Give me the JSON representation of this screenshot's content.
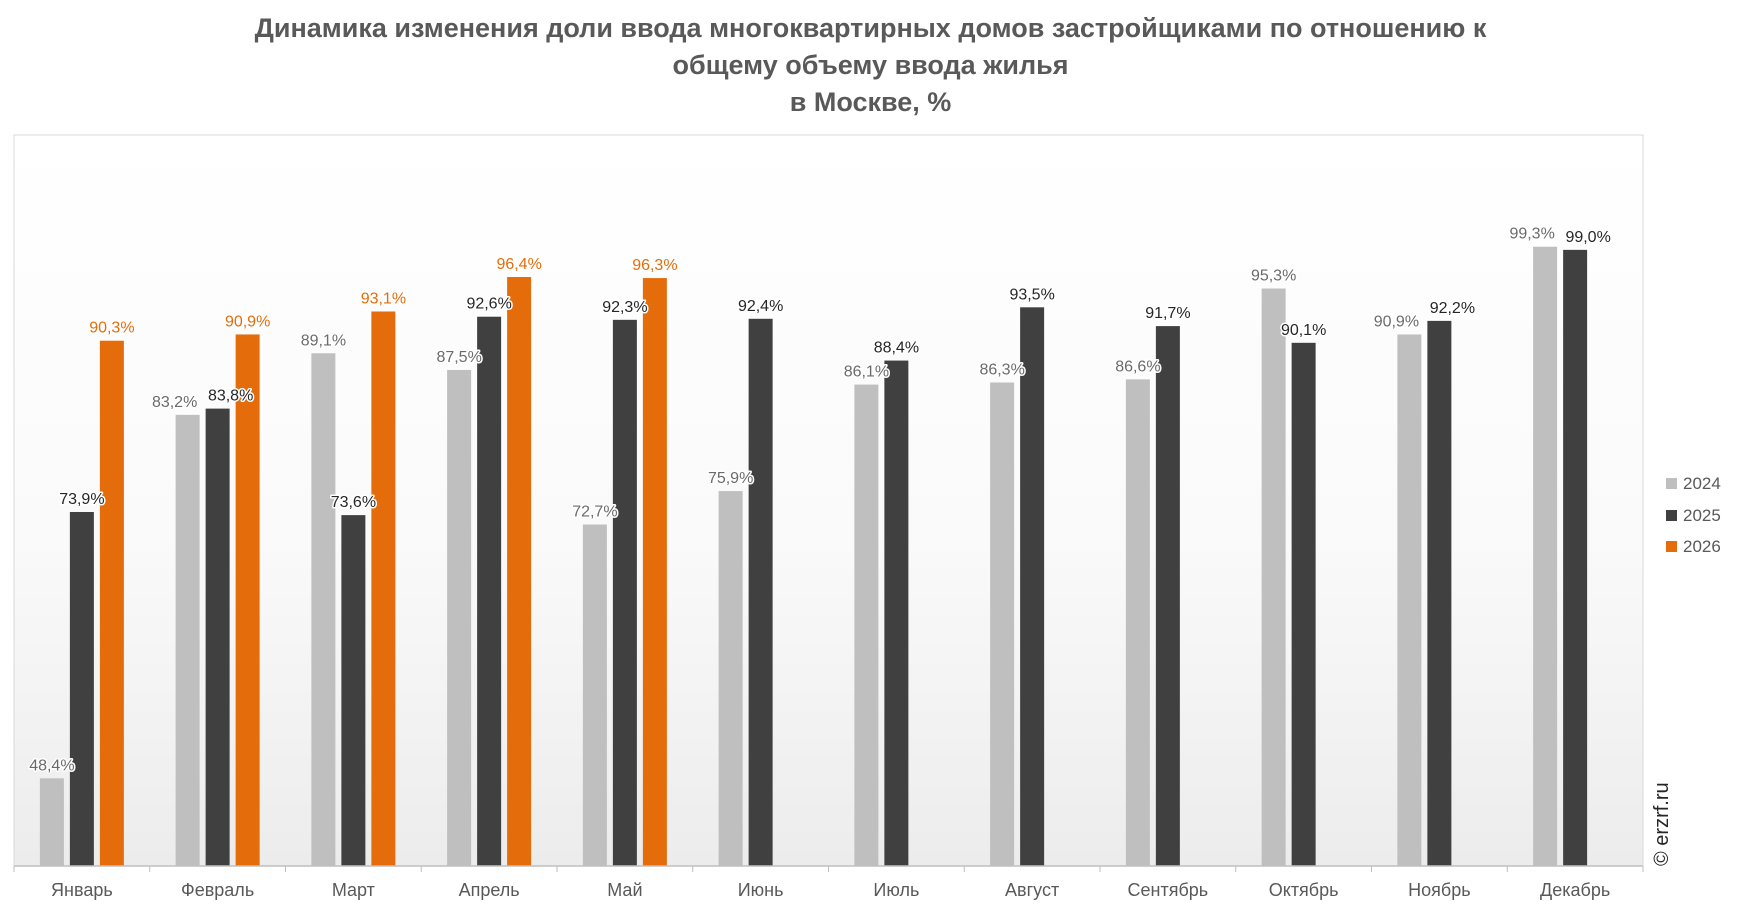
{
  "watermark": "© erzrf.ru",
  "chart_data": {
    "type": "bar",
    "title": [
      "Динамика изменения доли ввода многоквартирных домов застройщиками по отношению к",
      "общему объему ввода жилья",
      "в Москве, %"
    ],
    "xlabel": "",
    "ylabel": "",
    "ylim": [
      40,
      110
    ],
    "grid": false,
    "legend": "right",
    "categories": [
      "Январь",
      "Февраль",
      "Март",
      "Апрель",
      "Май",
      "Июнь",
      "Июль",
      "Август",
      "Сентябрь",
      "Октябрь",
      "Ноябрь",
      "Декабрь"
    ],
    "series": [
      {
        "name": "2024",
        "color": "#BFBFBF",
        "label_color": "#6B6B6B",
        "values": [
          48.4,
          83.2,
          89.1,
          87.5,
          72.7,
          75.9,
          86.1,
          86.3,
          86.6,
          95.3,
          90.9,
          99.3
        ]
      },
      {
        "name": "2025",
        "color": "#404040",
        "label_color": "#262626",
        "values": [
          73.9,
          83.8,
          73.6,
          92.6,
          92.3,
          92.4,
          88.4,
          93.5,
          91.7,
          90.1,
          92.2,
          99.0
        ]
      },
      {
        "name": "2026",
        "color": "#E46C0A",
        "label_color": "#E46C0A",
        "values": [
          90.3,
          90.9,
          93.1,
          96.4,
          96.3,
          null,
          null,
          null,
          null,
          null,
          null,
          null
        ]
      }
    ]
  }
}
